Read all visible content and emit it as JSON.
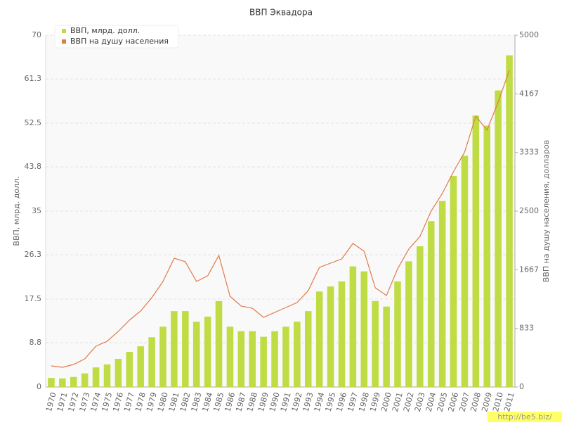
{
  "chart_data": {
    "type": "bar-line",
    "title": "ВВП Эквадора",
    "y_label": "ВВП, млрд. долл.",
    "y2_label": "ВВП на душу населения, долларов",
    "watermark": "http://be5.biz/",
    "categories": [
      "1970",
      "1971",
      "1972",
      "1973",
      "1974",
      "1975",
      "1976",
      "1977",
      "1978",
      "1979",
      "1980",
      "1981",
      "1982",
      "1983",
      "1984",
      "1985",
      "1986",
      "1987",
      "1988",
      "1989",
      "1990",
      "1991",
      "1992",
      "1993",
      "1994",
      "1995",
      "1996",
      "1997",
      "1998",
      "1999",
      "2000",
      "2001",
      "2002",
      "2003",
      "2004",
      "2005",
      "2006",
      "2007",
      "2008",
      "2009",
      "2010",
      "2011"
    ],
    "series": [
      {
        "name": "ВВП, млрд. долл.",
        "type": "bar",
        "color": "#bfdc45",
        "values": [
          1.8,
          1.7,
          2.0,
          2.7,
          3.9,
          4.5,
          5.6,
          7.0,
          8.1,
          9.9,
          12.0,
          15.1,
          15.1,
          13.0,
          14.0,
          17.1,
          12.0,
          11.1,
          11.1,
          10.0,
          11.1,
          12.0,
          13.0,
          15.1,
          19.0,
          20.0,
          21.0,
          24.0,
          23.0,
          17.1,
          16.0,
          21.0,
          25.0,
          28.0,
          33.0,
          37.0,
          42.0,
          46.0,
          54.0,
          52.0,
          59.0,
          66.0
        ]
      },
      {
        "name": "ВВП на душу населения",
        "type": "line",
        "axis": "y2",
        "color": "#e07a4a",
        "values": [
          300,
          280,
          320,
          400,
          580,
          650,
          790,
          950,
          1080,
          1270,
          1500,
          1830,
          1780,
          1500,
          1580,
          1870,
          1290,
          1150,
          1120,
          990,
          1060,
          1130,
          1200,
          1370,
          1700,
          1760,
          1820,
          2040,
          1930,
          1410,
          1300,
          1680,
          1960,
          2140,
          2500,
          2750,
          3060,
          3340,
          3850,
          3650,
          4050,
          4500
        ]
      }
    ],
    "ylim": [
      0,
      70
    ],
    "yticks": [
      0,
      8.8,
      17.5,
      26.3,
      35,
      43.8,
      52.5,
      61.3,
      70
    ],
    "y2lim": [
      0,
      5000
    ],
    "y2ticks": [
      0,
      833,
      1667,
      2500,
      3333,
      4167,
      5000
    ],
    "grid": true,
    "legend": "top-left"
  }
}
